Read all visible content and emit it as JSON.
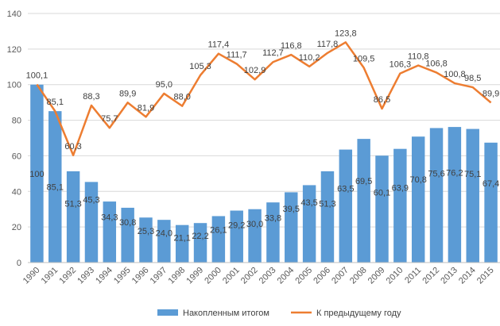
{
  "chart_data": {
    "type": "bar+line",
    "title": "",
    "xlabel": "",
    "ylabel": "",
    "ylim": [
      0,
      140
    ],
    "yticks": [
      0,
      20,
      40,
      60,
      80,
      100,
      120,
      140
    ],
    "categories": [
      "1990",
      "1991",
      "1992",
      "1993",
      "1994",
      "1995",
      "1996",
      "1997",
      "1998",
      "1999",
      "2000",
      "2001",
      "2002",
      "2003",
      "2004",
      "2005",
      "2006",
      "2007",
      "2008",
      "2009",
      "2010",
      "2011",
      "2012",
      "2013",
      "2014",
      "2015"
    ],
    "series": [
      {
        "name": "Накопленным итогом",
        "type": "bar",
        "color": "#5B9BD5",
        "values": [
          100,
          85.1,
          51.3,
          45.3,
          34.3,
          30.8,
          25.3,
          24.0,
          21.1,
          22.2,
          26.1,
          29.2,
          30.0,
          33.8,
          39.5,
          43.5,
          51.3,
          63.5,
          69.5,
          60.1,
          63.9,
          70.8,
          75.6,
          76.2,
          75.1,
          67.4
        ],
        "labels": [
          "100",
          "85,1",
          "51,3",
          "45,3",
          "34,3",
          "30,8",
          "25,3",
          "24,0",
          "21,1",
          "22,2",
          "26,1",
          "29,2",
          "30,0",
          "33,8",
          "39,5",
          "43,5",
          "51,3",
          "63,5",
          "69,5",
          "60,1",
          "63,9",
          "70,8",
          "75,6",
          "76,2",
          "75,1",
          "67,4"
        ]
      },
      {
        "name": "К предыдущему году",
        "type": "line",
        "color": "#ED7D31",
        "values": [
          100.1,
          85.1,
          60.3,
          88.3,
          75.7,
          89.9,
          81.9,
          95.0,
          88.0,
          105.3,
          117.4,
          111.7,
          102.9,
          112.7,
          116.8,
          110.2,
          117.8,
          123.8,
          109.5,
          86.5,
          106.3,
          110.8,
          106.8,
          100.8,
          98.5,
          89.9
        ],
        "labels": [
          "100,1",
          "85,1",
          "60,3",
          "88,3",
          "75,7",
          "89,9",
          "81,9",
          "95,0",
          "88,0",
          "105,3",
          "117,4",
          "111,7",
          "102,9",
          "112,7",
          "116,8",
          "110,2",
          "117,8",
          "123,8",
          "109,5",
          "86,5",
          "106,3",
          "110,8",
          "106,8",
          "100,8",
          "98,5",
          "89,9"
        ]
      }
    ],
    "legend": "bottom"
  }
}
